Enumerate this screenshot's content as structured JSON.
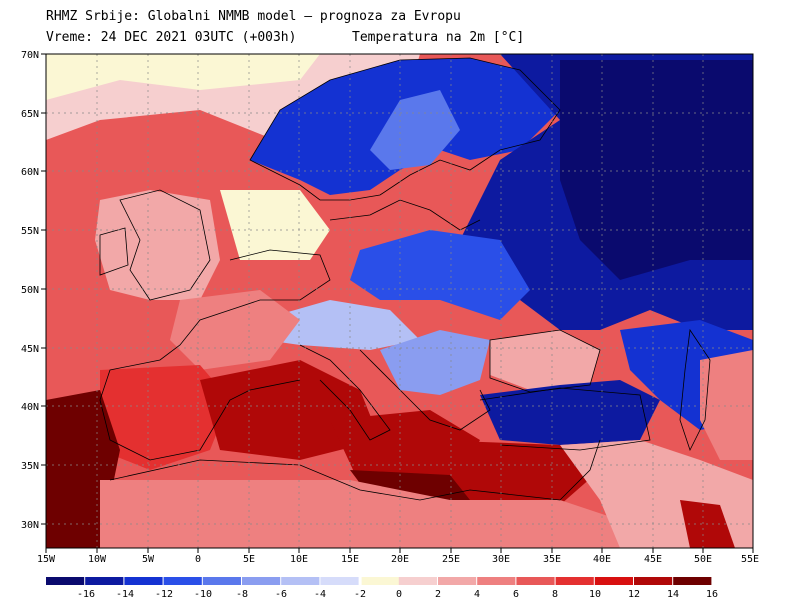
{
  "header": {
    "line1": "RHMZ Srbije: Globalni NMMB model — prognoza za Evropu",
    "line2": "Vreme: 24 DEC 2021 03UTC (+003h)",
    "line3": "Temperatura na 2m [°C]"
  },
  "axes": {
    "lon_labels": [
      "15W",
      "10W",
      "5W",
      "0",
      "5E",
      "10E",
      "15E",
      "20E",
      "25E",
      "30E",
      "35E",
      "40E",
      "45E",
      "50E",
      "55E"
    ],
    "lat_labels": [
      "70N",
      "65N",
      "60N",
      "55N",
      "50N",
      "45N",
      "40N",
      "35N",
      "30N"
    ]
  },
  "legend": {
    "ticks": [
      "-16",
      "-14",
      "-12",
      "-10",
      "-8",
      "-6",
      "-4",
      "-2",
      "0",
      "2",
      "4",
      "6",
      "8",
      "10",
      "12",
      "14",
      "16"
    ],
    "colors": [
      "#0a0a6e",
      "#0d1aa0",
      "#1432d2",
      "#2a4fe8",
      "#5a78ec",
      "#8a9df0",
      "#b4c0f5",
      "#d6dcfa",
      "#fbf7d4",
      "#f6cfcf",
      "#f2a8a8",
      "#ee8080",
      "#e85858",
      "#e43030",
      "#d81010",
      "#b00808",
      "#6e0000"
    ]
  },
  "map_colors": {
    "sea_warm": "#e43030",
    "land_cold": "#1432d2",
    "land_very_cold": "#0a0a6e",
    "land_mild": "#f2a8a8",
    "land_cool": "#8a9df0",
    "hot": "#b00808",
    "very_hot": "#6e0000",
    "neutral": "#fbf7d4"
  }
}
